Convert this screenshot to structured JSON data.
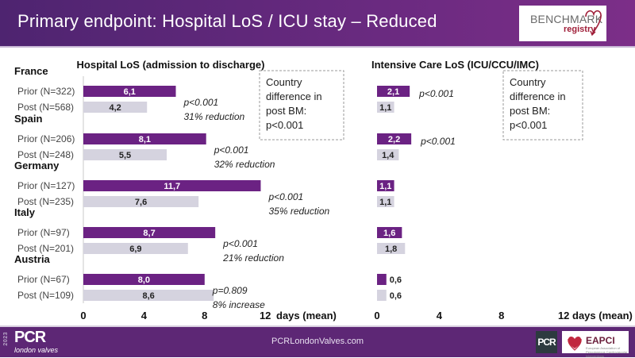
{
  "header": {
    "title": "Primary endpoint: Hospital LoS / ICU stay – Reduced",
    "logo_main": "BENCHMARK",
    "logo_sub": "registry"
  },
  "footer": {
    "year": "2023",
    "brand": "PCR",
    "brand_sub": "london valves",
    "url": "PCRLondonValves.com",
    "badge_pcr": "PCR",
    "badge_eapci": "EAPCI",
    "badge_eapci_sub": "European Association of Percutaneous Cardiovascular Interventions"
  },
  "colors": {
    "prior": "#6b2283",
    "post": "#d5d3df",
    "header_bg": "#5d2775"
  },
  "chart_data": [
    {
      "type": "bar",
      "orientation": "horizontal",
      "title": "Hospital LoS (admission to discharge)",
      "xlabel": "days (mean)",
      "xlim": [
        0,
        12
      ],
      "xticks": [
        "0",
        "4",
        "8",
        "12"
      ],
      "grid": false,
      "groups": [
        {
          "country": "France",
          "prior_label": "Prior (N=322)",
          "post_label": "Post (N=568)",
          "prior": 6.1,
          "post": 4.2,
          "prior_text": "6,1",
          "post_text": "4,2",
          "p": "p<0.001",
          "change": "31% reduction"
        },
        {
          "country": "Spain",
          "prior_label": "Prior (N=206)",
          "post_label": "Post (N=248)",
          "prior": 8.1,
          "post": 5.5,
          "prior_text": "8,1",
          "post_text": "5,5",
          "p": "p<0.001",
          "change": "32% reduction"
        },
        {
          "country": "Germany",
          "prior_label": "Prior (N=127)",
          "post_label": "Post (N=235)",
          "prior": 11.7,
          "post": 7.6,
          "prior_text": "11,7",
          "post_text": "7,6",
          "p": "p<0.001",
          "change": "35% reduction"
        },
        {
          "country": "Italy",
          "prior_label": "Prior (N=97)",
          "post_label": "Post (N=201)",
          "prior": 8.7,
          "post": 6.9,
          "prior_text": "8,7",
          "post_text": "6,9",
          "p": "p<0.001",
          "change": "21% reduction"
        },
        {
          "country": "Austria",
          "prior_label": "Prior (N=67)",
          "post_label": "Post (N=109)",
          "prior": 8.0,
          "post": 8.6,
          "prior_text": "8,0",
          "post_text": "8,6",
          "p": "p=0.809",
          "change": "8% increase"
        }
      ],
      "annotation": [
        "Country",
        "difference in",
        "post BM:",
        "p<0.001"
      ]
    },
    {
      "type": "bar",
      "orientation": "horizontal",
      "title": "Intensive Care LoS (ICU/CCU/IMC)",
      "xlabel": "days (mean)",
      "xlim": [
        0,
        12
      ],
      "xticks": [
        "0",
        "4",
        "8",
        "12"
      ],
      "grid": false,
      "groups": [
        {
          "country": "France",
          "prior": 2.1,
          "post": 1.1,
          "prior_text": "2,1",
          "post_text": "1,1",
          "p": "p<0.001"
        },
        {
          "country": "Spain",
          "prior": 2.2,
          "post": 1.4,
          "prior_text": "2,2",
          "post_text": "1,4",
          "p": "p<0.001"
        },
        {
          "country": "Germany",
          "prior": 1.1,
          "post": 1.1,
          "prior_text": "1,1",
          "post_text": "1,1",
          "p": ""
        },
        {
          "country": "Italy",
          "prior": 1.6,
          "post": 1.8,
          "prior_text": "1,6",
          "post_text": "1,8",
          "p": ""
        },
        {
          "country": "Austria",
          "prior": 0.6,
          "post": 0.6,
          "prior_text": "0,6",
          "post_text": "0,6",
          "p": ""
        }
      ],
      "annotation": [
        "Country",
        "difference in",
        "post BM:",
        "p<0.001"
      ]
    }
  ]
}
